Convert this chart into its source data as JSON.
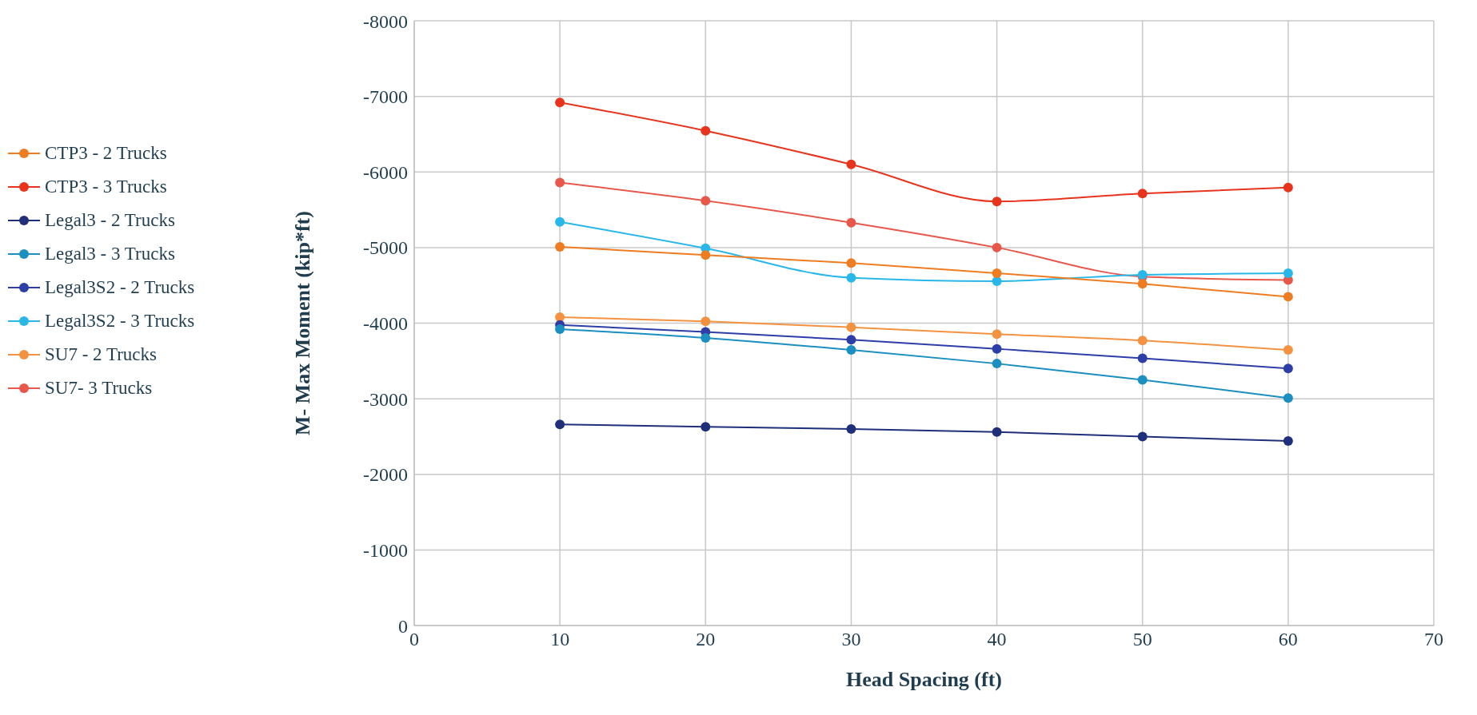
{
  "chart_data": {
    "type": "line",
    "xlabel": "Head Spacing (ft)",
    "ylabel": "M- Max Moment (kip*ft)",
    "x": [
      10,
      20,
      30,
      40,
      50,
      60
    ],
    "xlim": [
      0,
      70
    ],
    "xticks": [
      0,
      10,
      20,
      30,
      40,
      50,
      60,
      70
    ],
    "ylim": [
      0,
      -8000
    ],
    "yticks": [
      0,
      -1000,
      -2000,
      -3000,
      -4000,
      -5000,
      -6000,
      -7000,
      -8000
    ],
    "grid": true,
    "legend": "left",
    "marker": "circle",
    "series": [
      {
        "name": "CTP3 - 2 Trucks",
        "color": "#ee7d22",
        "values": [
          -5010,
          -4900,
          -4795,
          -4660,
          -4520,
          -4350
        ]
      },
      {
        "name": "CTP3 - 3 Trucks",
        "color": "#e8341c",
        "values": [
          -6920,
          -6545,
          -6100,
          -5610,
          -5715,
          -5795
        ]
      },
      {
        "name": "Legal3 - 2 Trucks",
        "color": "#1f2f7a",
        "values": [
          -2660,
          -2630,
          -2600,
          -2560,
          -2500,
          -2440
        ]
      },
      {
        "name": "Legal3 - 3 Trucks",
        "color": "#1a8fc0",
        "values": [
          -3920,
          -3805,
          -3645,
          -3465,
          -3250,
          -3010
        ]
      },
      {
        "name": "Legal3S2 - 2 Trucks",
        "color": "#2e3ea8",
        "values": [
          -3975,
          -3885,
          -3780,
          -3660,
          -3535,
          -3400
        ]
      },
      {
        "name": "Legal3S2 - 3 Trucks",
        "color": "#29b7ea",
        "values": [
          -5340,
          -4990,
          -4600,
          -4555,
          -4640,
          -4660
        ]
      },
      {
        "name": "SU7 - 2 Trucks",
        "color": "#f39240",
        "values": [
          -4080,
          -4025,
          -3945,
          -3855,
          -3770,
          -3645
        ]
      },
      {
        "name": "SU7- 3 Trucks",
        "color": "#e8584a",
        "values": [
          -5860,
          -5620,
          -5330,
          -5000,
          -4615,
          -4570
        ]
      }
    ]
  }
}
